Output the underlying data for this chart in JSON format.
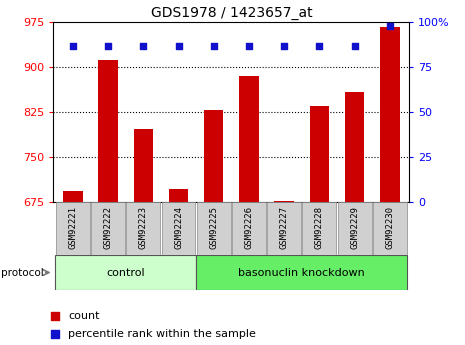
{
  "title": "GDS1978 / 1423657_at",
  "samples": [
    "GSM92221",
    "GSM92222",
    "GSM92223",
    "GSM92224",
    "GSM92225",
    "GSM92226",
    "GSM92227",
    "GSM92228",
    "GSM92229",
    "GSM92230"
  ],
  "counts": [
    693,
    912,
    797,
    697,
    828,
    886,
    676,
    835,
    858,
    968
  ],
  "percentile_ranks": [
    87,
    87,
    87,
    87,
    87,
    87,
    87,
    87,
    87,
    98
  ],
  "bar_color": "#cc0000",
  "dot_color": "#1111cc",
  "ylim_left": [
    675,
    975
  ],
  "ylim_right": [
    0,
    100
  ],
  "yticks_left": [
    675,
    750,
    825,
    900,
    975
  ],
  "yticks_right": [
    0,
    25,
    50,
    75,
    100
  ],
  "ytick_labels_right": [
    "0",
    "25",
    "50",
    "75",
    "100%"
  ],
  "gridlines": [
    750,
    825,
    900
  ],
  "ctrl_n": 4,
  "kd_n": 6,
  "control_label": "control",
  "knockdown_label": "basonuclin knockdown",
  "protocol_label": "protocol",
  "legend_count_label": "count",
  "legend_percentile_label": "percentile rank within the sample",
  "control_color": "#ccffcc",
  "knockdown_color": "#66ee66",
  "tick_bg_color": "#d0d0d0",
  "bar_width": 0.55
}
